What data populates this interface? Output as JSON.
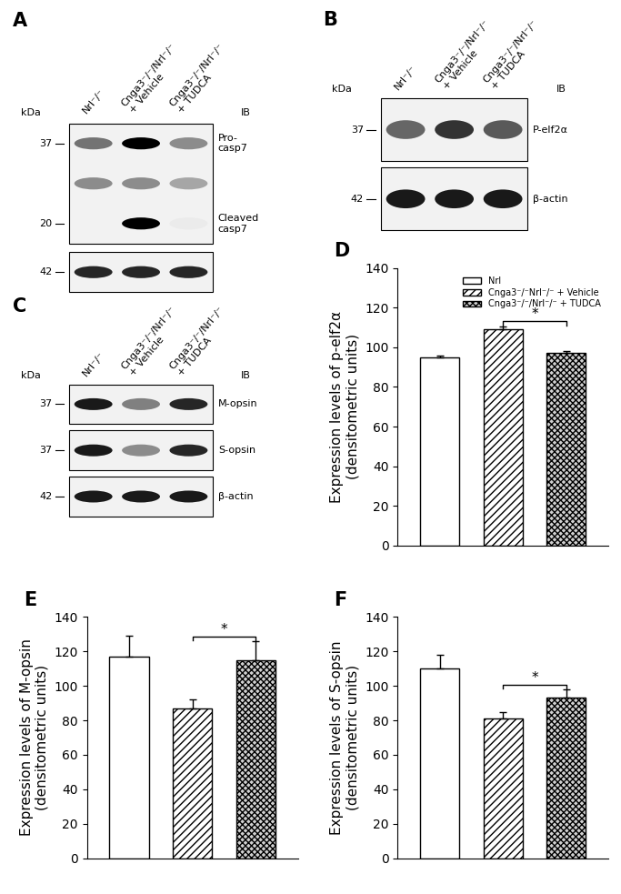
{
  "chart_data": [
    {
      "type": "blot",
      "panel": "A",
      "unit": "kDa",
      "ib": "IB",
      "lanes": [
        "Nrl⁻/⁻",
        "Cnga3⁻/⁻/Nrl⁻/⁻\n+ Vehicle",
        "Cnga3⁻/⁻/Nrl⁻/⁻\n+ TUDCA"
      ],
      "membranes": [
        {
          "bands": [
            {
              "label": "Pro-\ncasp7",
              "marker": 37,
              "intensity": [
                0.55,
                1.0,
                0.45
              ]
            },
            {
              "intensity": [
                0.45,
                0.45,
                0.35
              ]
            },
            {
              "label": "Cleaved\ncasp7",
              "marker": 20,
              "intensity": [
                0.05,
                1.0,
                0.08
              ]
            }
          ]
        },
        {
          "bands": [
            {
              "marker": 42,
              "intensity": [
                0.85,
                0.85,
                0.85
              ]
            }
          ]
        }
      ]
    },
    {
      "type": "blot",
      "panel": "B",
      "unit": "kDa",
      "ib": "IB",
      "lanes": [
        "Nrl⁻/⁻",
        "Cnga3⁻/⁻/Nrl⁻/⁻\n+ Vehicle",
        "Cnga3⁻/⁻/Nrl⁻/⁻\n+ TUDCA"
      ],
      "membranes": [
        {
          "bands": [
            {
              "label": "P-elf2α",
              "marker": 37,
              "intensity": [
                0.6,
                0.8,
                0.65
              ]
            }
          ]
        },
        {
          "bands": [
            {
              "label": "β-actin",
              "marker": 42,
              "intensity": [
                0.9,
                0.9,
                0.9
              ]
            }
          ]
        }
      ]
    },
    {
      "type": "blot",
      "panel": "C",
      "unit": "kDa",
      "ib": "IB",
      "lanes": [
        "Nrl⁻/⁻",
        "Cnga3⁻/⁻/Nrl⁻/⁻\n+ Vehicle",
        "Cnga3⁻/⁻/Nrl⁻/⁻\n+ TUDCA"
      ],
      "membranes": [
        {
          "bands": [
            {
              "label": "M-opsin",
              "marker": 37,
              "intensity": [
                0.9,
                0.5,
                0.85
              ]
            }
          ]
        },
        {
          "bands": [
            {
              "label": "S-opsin",
              "marker": 37,
              "intensity": [
                0.9,
                0.45,
                0.85
              ]
            }
          ]
        },
        {
          "bands": [
            {
              "label": "β-actin",
              "marker": 42,
              "intensity": [
                0.9,
                0.9,
                0.9
              ]
            }
          ]
        }
      ]
    },
    {
      "type": "bar",
      "panel": "D",
      "ylabel": "Expression levels of p-elf2α\n(densitometric units)",
      "categories": [
        null
      ],
      "ylim": [
        0,
        140
      ],
      "yticks": [
        0,
        20,
        40,
        60,
        80,
        100,
        120,
        140
      ],
      "tick_labels": "y",
      "legend": "upper right",
      "series": [
        {
          "name": "Nrl",
          "color": "#ffffff",
          "values": [
            95
          ],
          "errors": [
            1
          ]
        },
        {
          "name": "Cnga3⁻/⁻Nrl⁻/⁻ + Vehicle",
          "color": "#ffffff",
          "values": [
            109
          ],
          "errors": [
            1.5
          ]
        },
        {
          "name": "Cnga3⁻/⁻/Nrl⁻/⁻ + TUDCA",
          "color": "#d0d0d0",
          "values": [
            97
          ],
          "errors": [
            1
          ]
        }
      ],
      "annotations": [
        {
          "text": "*",
          "from": 1,
          "to": 2
        }
      ]
    },
    {
      "type": "bar",
      "panel": "E",
      "ylabel": "Expression levels of M-opsin\n(densitometric units)",
      "categories": [
        null
      ],
      "ylim": [
        0,
        140
      ],
      "yticks": [
        0,
        20,
        40,
        60,
        80,
        100,
        120,
        140
      ],
      "tick_labels": "y",
      "series": [
        {
          "color": "#ffffff",
          "values": [
            117
          ],
          "errors": [
            12
          ]
        },
        {
          "color": "#ffffff",
          "values": [
            87
          ],
          "errors": [
            5
          ]
        },
        {
          "color": "#d0d0d0",
          "values": [
            115
          ],
          "errors": [
            11
          ]
        }
      ],
      "annotations": [
        {
          "text": "*",
          "from": 1,
          "to": 2
        }
      ]
    },
    {
      "type": "bar",
      "panel": "F",
      "ylabel": "Expression levels of S-opsin\n(densitometric units)",
      "categories": [
        null
      ],
      "ylim": [
        0,
        140
      ],
      "yticks": [
        0,
        20,
        40,
        60,
        80,
        100,
        120,
        140
      ],
      "tick_labels": "y",
      "series": [
        {
          "color": "#ffffff",
          "values": [
            110
          ],
          "errors": [
            8
          ]
        },
        {
          "color": "#ffffff",
          "values": [
            81
          ],
          "errors": [
            4
          ]
        },
        {
          "color": "#d0d0d0",
          "values": [
            93
          ],
          "errors": [
            5
          ]
        }
      ],
      "annotations": [
        {
          "text": "*",
          "from": 1,
          "to": 2
        }
      ]
    }
  ]
}
